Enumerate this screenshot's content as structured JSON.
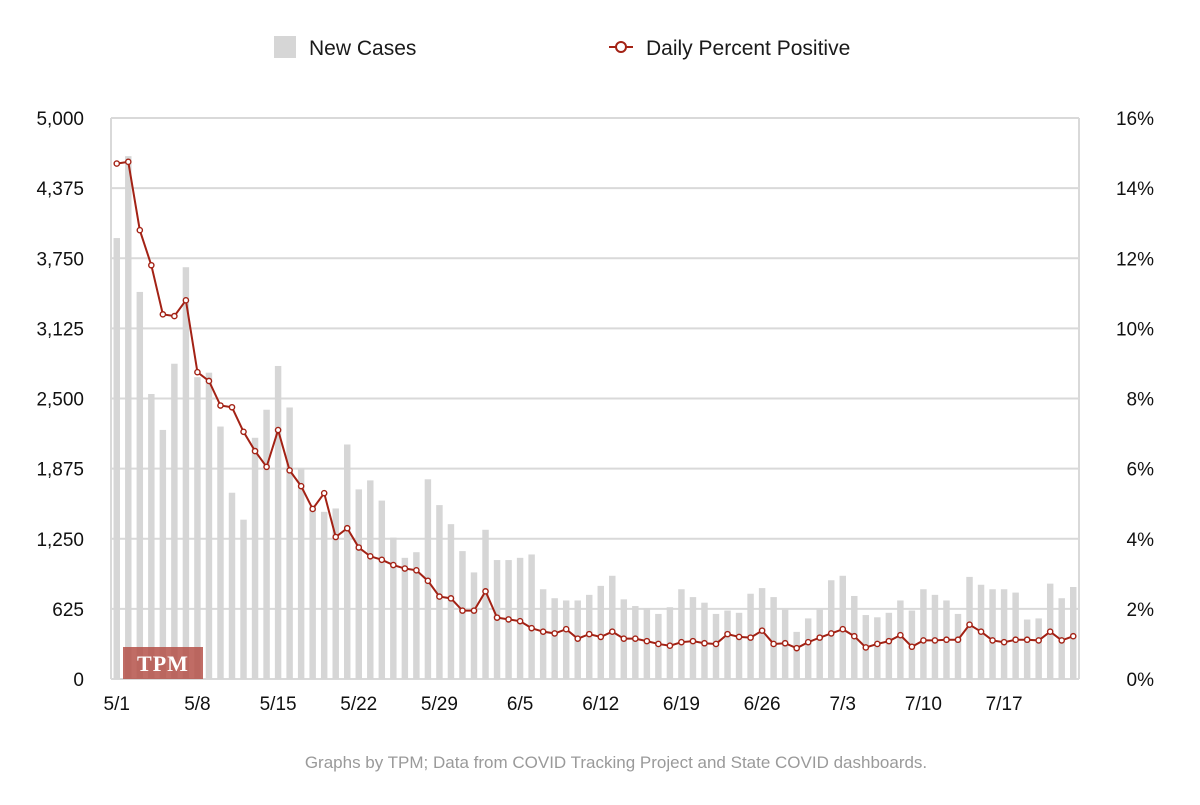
{
  "legend": {
    "cases_label": "New Cases",
    "percent_label": "Daily Percent Positive"
  },
  "source_note": "Graphs by TPM; Data from COVID Tracking Project and State COVID dashboards.",
  "watermark": "TPM",
  "colors": {
    "bars": "#d6d6d6",
    "line": "#a32215",
    "grid": "#d9d9d9",
    "watermark": "#b5524a"
  },
  "chart_data": {
    "type": "bar+line",
    "x_tick_labels": [
      "5/1",
      "5/8",
      "5/15",
      "5/22",
      "5/29",
      "6/5",
      "6/12",
      "6/19",
      "6/26",
      "7/3",
      "7/10",
      "7/17"
    ],
    "y_left_ticks": [
      "5,000",
      "4,375",
      "3,750",
      "3,125",
      "2,500",
      "1,875",
      "1,250",
      "625",
      "0"
    ],
    "y_right_ticks": [
      "16%",
      "14%",
      "12%",
      "10%",
      "8%",
      "6%",
      "4%",
      "2%",
      "0%"
    ],
    "y_left_range": [
      0,
      5000
    ],
    "y_right_range": [
      0,
      16
    ],
    "grid": true,
    "legend_position": "top",
    "series": [
      {
        "name": "New Cases",
        "kind": "bar",
        "axis": "left",
        "values": [
          3930,
          4660,
          3450,
          2540,
          2220,
          2810,
          3670,
          2690,
          2730,
          2250,
          1660,
          1420,
          2150,
          2400,
          2790,
          2420,
          1880,
          1540,
          1490,
          1520,
          2090,
          1690,
          1770,
          1590,
          1260,
          1080,
          1130,
          1780,
          1550,
          1380,
          1140,
          950,
          1330,
          1060,
          1060,
          1080,
          1110,
          800,
          720,
          700,
          700,
          750,
          830,
          920,
          710,
          650,
          630,
          580,
          640,
          800,
          730,
          680,
          580,
          610,
          590,
          760,
          810,
          730,
          620,
          420,
          540,
          620,
          880,
          920,
          740,
          570,
          550,
          590,
          700,
          610,
          800,
          750,
          700,
          580,
          910,
          840,
          800,
          800,
          770,
          530,
          540,
          850,
          720,
          820
        ]
      },
      {
        "name": "Daily Percent Positive",
        "kind": "line",
        "axis": "right",
        "values": [
          14.7,
          14.75,
          12.8,
          11.8,
          10.4,
          10.35,
          10.8,
          8.75,
          8.5,
          7.8,
          7.75,
          7.05,
          6.5,
          6.05,
          7.1,
          5.95,
          5.5,
          4.85,
          5.3,
          4.05,
          4.3,
          3.75,
          3.5,
          3.4,
          3.25,
          3.15,
          3.1,
          2.8,
          2.35,
          2.3,
          1.95,
          1.95,
          2.5,
          1.75,
          1.7,
          1.65,
          1.45,
          1.35,
          1.3,
          1.42,
          1.15,
          1.28,
          1.2,
          1.35,
          1.15,
          1.15,
          1.08,
          1.0,
          0.95,
          1.05,
          1.08,
          1.02,
          1.0,
          1.28,
          1.2,
          1.18,
          1.38,
          1.0,
          1.02,
          0.88,
          1.05,
          1.18,
          1.3,
          1.42,
          1.22,
          0.9,
          1.0,
          1.08,
          1.25,
          0.92,
          1.1,
          1.1,
          1.12,
          1.12,
          1.55,
          1.35,
          1.1,
          1.05,
          1.12,
          1.12,
          1.1,
          1.35,
          1.1,
          1.22
        ]
      }
    ]
  }
}
